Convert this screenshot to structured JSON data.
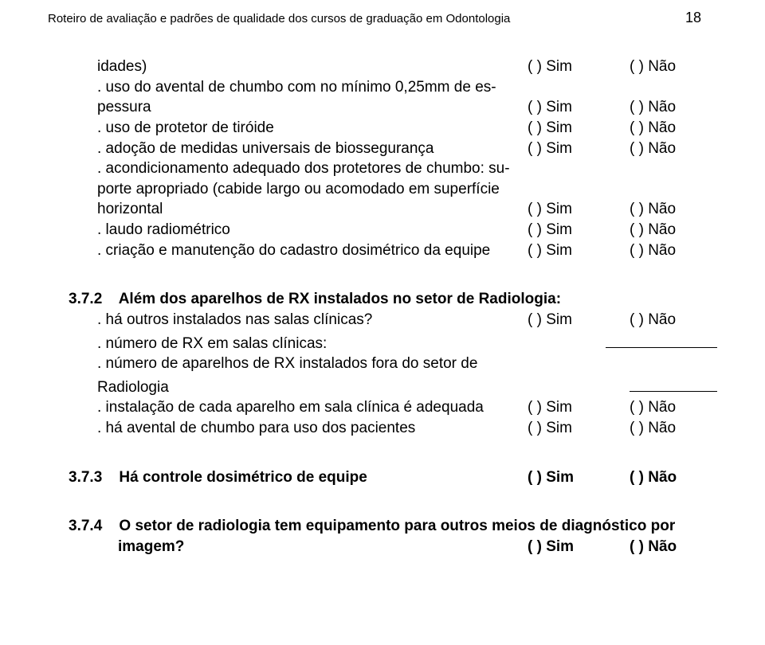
{
  "header": {
    "title": "Roteiro de avaliação e padrões de qualidade dos cursos de graduação em Odontologia",
    "page_number": "18"
  },
  "checkbox": {
    "sim_open": "(   ) ",
    "sim_word": "Sim",
    "nao_open": "(   ) ",
    "nao_word": "Não"
  },
  "items_top": [
    {
      "lines": [
        "idades)"
      ],
      "sim": true,
      "nao": true,
      "first_indent": "indent2",
      "rest_indent": "indent2"
    },
    {
      "lines": [
        ". uso do avental de chumbo com no mínimo 0,25mm de es-",
        "pessura"
      ],
      "sim": true,
      "nao": true,
      "first_indent": "indent1",
      "rest_indent": "indent2"
    },
    {
      "lines": [
        ". uso de protetor de tiróide"
      ],
      "sim": true,
      "nao": true,
      "first_indent": "indent1",
      "rest_indent": "indent2"
    },
    {
      "lines": [
        ". adoção de medidas universais de biossegurança"
      ],
      "sim": true,
      "nao": true,
      "first_indent": "indent1",
      "rest_indent": "indent2"
    },
    {
      "lines": [
        ". acondicionamento adequado dos protetores de chumbo: su-",
        "porte apropriado (cabide largo ou acomodado em superfície",
        "horizontal"
      ],
      "sim": true,
      "nao": true,
      "first_indent": "indent1",
      "rest_indent": "indent2"
    },
    {
      "lines": [
        ". laudo radiométrico"
      ],
      "sim": true,
      "nao": true,
      "first_indent": "indent1",
      "rest_indent": "indent2"
    },
    {
      "lines": [
        ". criação e manutenção do cadastro dosimétrico da equipe"
      ],
      "sim": true,
      "nao": true,
      "first_indent": "indent1",
      "rest_indent": "indent2"
    }
  ],
  "section_372": {
    "num": "3.7.2",
    "title": "Além dos aparelhos de RX instalados no setor de Radiologia:",
    "items": [
      {
        "lines": [
          ". há outros instalados nas salas clínicas?"
        ],
        "sim": true,
        "nao": true,
        "trailing_underline": null
      },
      {
        "lines": [
          ". número de RX em salas clínicas:"
        ],
        "sim": false,
        "nao": false,
        "trailing_underline": "underline"
      },
      {
        "lines": [
          ". número de aparelhos de RX instalados fora do setor de",
          "Radiologia"
        ],
        "sim": false,
        "nao": false,
        "trailing_underline": "underline-short"
      },
      {
        "lines": [
          ". instalação de cada aparelho em sala clínica é adequada"
        ],
        "sim": true,
        "nao": true,
        "trailing_underline": null
      },
      {
        "lines": [
          ". há avental de chumbo para uso dos pacientes"
        ],
        "sim": true,
        "nao": true,
        "trailing_underline": null
      }
    ]
  },
  "section_373": {
    "num": "3.7.3",
    "title": "Há controle dosimétrico de equipe",
    "sim": true,
    "nao": true
  },
  "section_374": {
    "num": "3.7.4",
    "title_line1": "O setor de radiologia tem equipamento para outros meios de diagnóstico por",
    "title_line2": "imagem?",
    "sim": true,
    "nao": true
  }
}
